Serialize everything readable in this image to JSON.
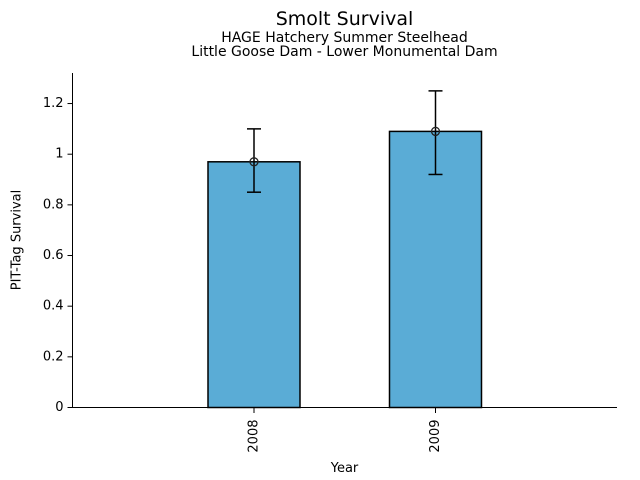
{
  "figure": {
    "background": "#ffffff",
    "title": "Smolt Survival",
    "subtitle_line1": "HAGE Hatchery Summer Steelhead",
    "subtitle_line2": "Little Goose Dam - Lower Monumental Dam"
  },
  "chart_data": {
    "type": "bar",
    "title": "Smolt Survival",
    "subtitle": [
      "HAGE Hatchery Summer Steelhead",
      "Little Goose Dam - Lower Monumental Dam"
    ],
    "xlabel": "Year",
    "ylabel": "PIT-Tag Survival",
    "categories": [
      "2008",
      "2009"
    ],
    "values": [
      0.97,
      1.09
    ],
    "error_low": [
      0.85,
      0.92
    ],
    "error_high": [
      1.1,
      1.25
    ],
    "ylim": [
      0,
      1.32
    ],
    "yticks": [
      0,
      0.2,
      0.4,
      0.6,
      0.8,
      1,
      1.2
    ],
    "ytick_labels": [
      "0",
      "0.2",
      "0.4",
      "0.6",
      "0.8",
      "1",
      "1.2"
    ],
    "xtick_rotation_deg": 90,
    "bar_fill": "#5AACD6",
    "bar_edge": "#000000",
    "errorbar_color": "#000000",
    "marker": "open-circle",
    "marker_color": "#222222",
    "grid": false,
    "legend": "none"
  }
}
